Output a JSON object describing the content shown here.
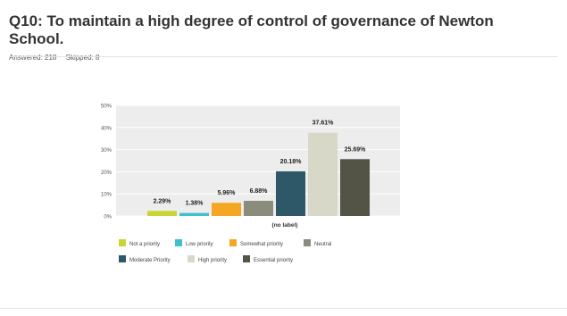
{
  "question": {
    "title": "Q10: To maintain a high degree of control of governance of Newton School.",
    "answered_label": "Answered: 218",
    "skipped_label": "Skipped: 8"
  },
  "chart_data": {
    "type": "bar",
    "xlabel": "(no label)",
    "ylabel": "",
    "ylim": [
      0,
      50
    ],
    "yticks": [
      "0%",
      "10%",
      "20%",
      "30%",
      "40%",
      "50%"
    ],
    "grid": true,
    "legend_position": "bottom",
    "series": [
      {
        "name": "Not a priority",
        "value": 2.29,
        "label": "2.29%",
        "color": "#c9d632"
      },
      {
        "name": "Low priority",
        "value": 1.38,
        "label": "1.38%",
        "color": "#3fbfc9"
      },
      {
        "name": "Somewhat priority",
        "value": 5.96,
        "label": "5.96%",
        "color": "#f5a623"
      },
      {
        "name": "Neutral",
        "value": 6.88,
        "label": "6.88%",
        "color": "#8c8c7c"
      },
      {
        "name": "Moderate Priority",
        "value": 20.18,
        "label": "20.18%",
        "color": "#2e5868"
      },
      {
        "name": "High priority",
        "value": 37.61,
        "label": "37.61%",
        "color": "#d8d8c8"
      },
      {
        "name": "Essential priority",
        "value": 25.69,
        "label": "25.69%",
        "color": "#535346"
      }
    ]
  }
}
